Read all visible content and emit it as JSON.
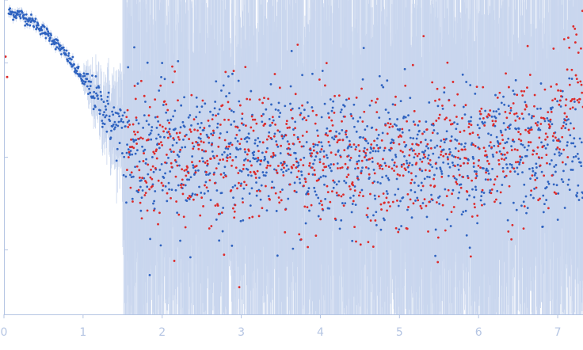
{
  "chart_data": {
    "type": "scatter",
    "title": "",
    "xlabel": "",
    "ylabel": "",
    "xlim": [
      0,
      7.32
    ],
    "ylim": [
      0,
      1
    ],
    "x_ticks": [
      0,
      1,
      2,
      3,
      4,
      5,
      6,
      7
    ],
    "x_tick_labels": [
      "0",
      "1",
      "2",
      "3",
      "4",
      "5",
      "6",
      "7"
    ],
    "y_tick_values": [
      0.205,
      0.5,
      0.8,
      1.0
    ],
    "y_tick_labels": [
      "",
      "",
      "",
      ""
    ],
    "grid": false,
    "legend": "none",
    "colors": {
      "axis": "#b5c5e3",
      "error_band": "#c9d6ee",
      "series_blue": "#2f63c0",
      "series_red": "#dd2a2a"
    },
    "series": [
      {
        "color": "#2f63c0",
        "marker": "dot",
        "error_bars": true,
        "description_points": [
          {
            "x": 0.06,
            "y": 0.96
          },
          {
            "x": 0.2,
            "y": 0.955
          },
          {
            "x": 0.4,
            "y": 0.925
          },
          {
            "x": 0.6,
            "y": 0.88
          },
          {
            "x": 0.8,
            "y": 0.82
          },
          {
            "x": 1.0,
            "y": 0.745
          },
          {
            "x": 1.2,
            "y": 0.68
          },
          {
            "x": 1.4,
            "y": 0.6
          },
          {
            "x": 1.6,
            "y": 0.54
          },
          {
            "x": 1.8,
            "y": 0.51
          },
          {
            "x": 2.0,
            "y": 0.5
          },
          {
            "x": 7.32,
            "y": 0.5
          }
        ]
      },
      {
        "color": "#dd2a2a",
        "marker": "dot",
        "error_bars": true,
        "description_points": [
          {
            "x": 0.02,
            "y": 0.82
          },
          {
            "x": 0.04,
            "y": 0.75
          },
          {
            "x": 1.6,
            "y": 0.5
          },
          {
            "x": 4.0,
            "y": 0.5
          },
          {
            "x": 6.5,
            "y": 0.52
          },
          {
            "x": 7.0,
            "y": 0.6
          },
          {
            "x": 7.3,
            "y": 0.8
          }
        ]
      }
    ]
  }
}
